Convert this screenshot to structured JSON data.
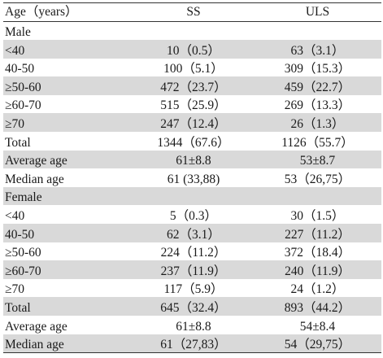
{
  "header": {
    "age": "Age（years）",
    "ss": "SS",
    "uls": "ULS"
  },
  "rows": [
    {
      "label": "Male",
      "ss": "",
      "uls": "",
      "shaded": false
    },
    {
      "label": "<40",
      "ss": "10（0.5）",
      "uls": "63（3.1）",
      "shaded": true
    },
    {
      "label": "40-50",
      "ss": "100（5.1）",
      "uls": "309（15.3）",
      "shaded": false
    },
    {
      "label": "≥50-60",
      "ss": "472（23.7）",
      "uls": "459（22.7）",
      "shaded": true
    },
    {
      "label": "≥60-70",
      "ss": "515（25.9）",
      "uls": "269（13.3）",
      "shaded": false
    },
    {
      "label": "≥70",
      "ss": "247（12.4）",
      "uls": "26（1.3）",
      "shaded": true
    },
    {
      "label": "Total",
      "ss": "1344（67.6）",
      "uls": "1126（55.7）",
      "shaded": false
    },
    {
      "label": "Average age",
      "ss": "61±8.8",
      "uls": "53±8.7",
      "shaded": true
    },
    {
      "label": "Median age",
      "ss": "61 (33,88)",
      "uls": "53（26,75）",
      "shaded": false
    },
    {
      "label": "Female",
      "ss": "",
      "uls": "",
      "shaded": true
    },
    {
      "label": "<40",
      "ss": "5（0.3）",
      "uls": "30（1.5）",
      "shaded": false
    },
    {
      "label": "40-50",
      "ss": "62（3.1）",
      "uls": "227（11.2）",
      "shaded": true
    },
    {
      "label": "≥50-60",
      "ss": "224（11.2）",
      "uls": "372（18.4）",
      "shaded": false
    },
    {
      "label": "≥60-70",
      "ss": "237（11.9）",
      "uls": "240（11.9）",
      "shaded": true
    },
    {
      "label": "≥70",
      "ss": "117（5.9）",
      "uls": "24（1.2）",
      "shaded": false
    },
    {
      "label": "Total",
      "ss": "645（32.4）",
      "uls": "893（44.2）",
      "shaded": true
    },
    {
      "label": "Average age",
      "ss": "61±8.8",
      "uls": "54±8.4",
      "shaded": false
    },
    {
      "label": "Median age",
      "ss": "61（27,83）",
      "uls": "54（29,75）",
      "shaded": true
    }
  ]
}
